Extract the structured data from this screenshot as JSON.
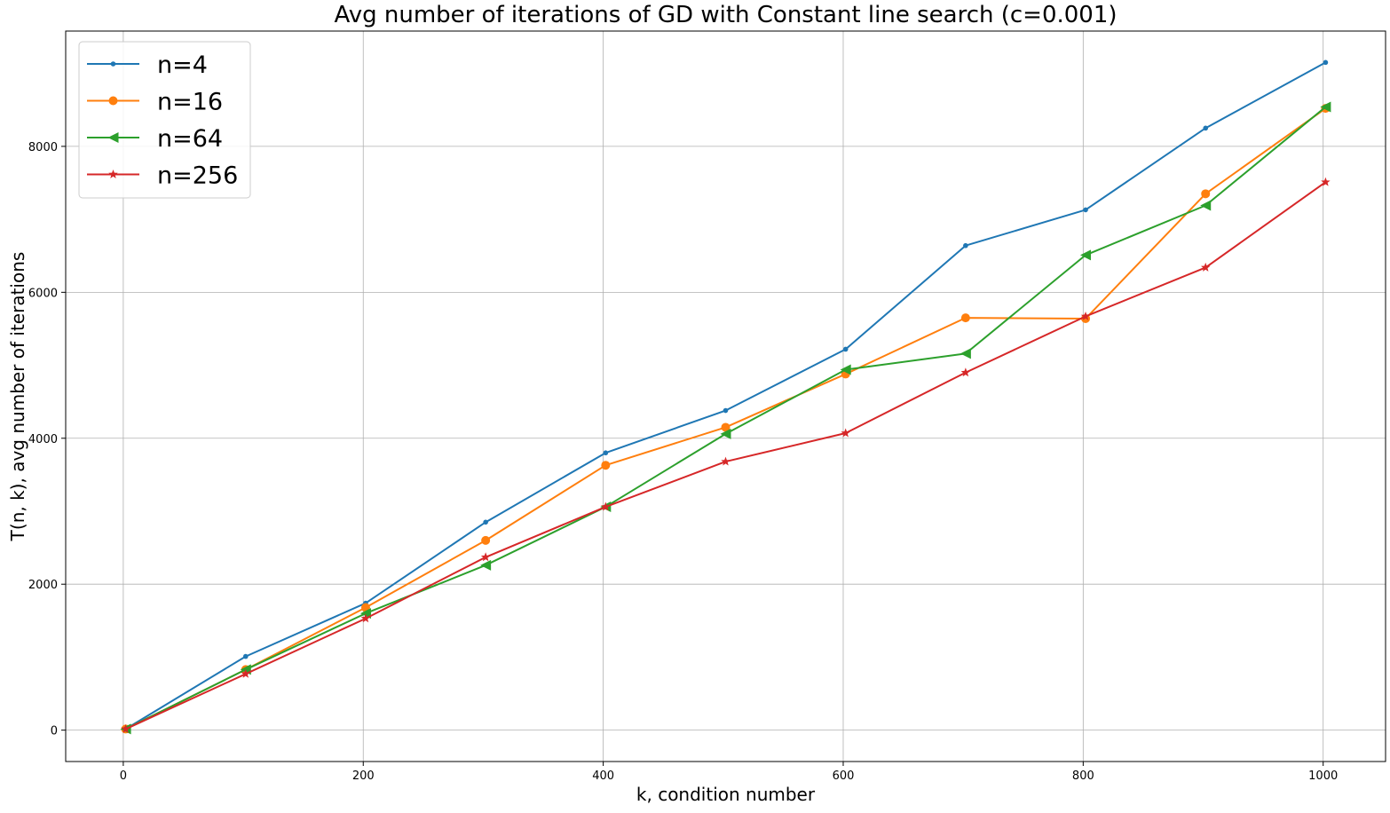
{
  "chart_data": {
    "type": "line",
    "title": "Avg number of iterations of GD with Constant line search (c=0.001)",
    "xlabel": "k, condition number",
    "ylabel": "T(n, k), avg number of iterations",
    "xlim": [
      -48,
      1052
    ],
    "ylim": [
      -430,
      9580
    ],
    "xticks": [
      0,
      200,
      400,
      600,
      800,
      1000
    ],
    "yticks": [
      0,
      2000,
      4000,
      6000,
      8000
    ],
    "xtick_labels": [
      "0",
      "200",
      "400",
      "600",
      "800",
      "1000"
    ],
    "ytick_labels": [
      "0",
      "2000",
      "4000",
      "6000",
      "8000"
    ],
    "grid": true,
    "legend_position": "top-left",
    "x": [
      2,
      102,
      202,
      302,
      402,
      502,
      602,
      702,
      802,
      902,
      1002
    ],
    "series": [
      {
        "name": "n=4",
        "color": "#1f77b4",
        "marker": "point",
        "values": [
          15,
          1010,
          1740,
          2850,
          3800,
          4380,
          5220,
          6640,
          7130,
          8250,
          9150
        ]
      },
      {
        "name": "n=16",
        "color": "#ff7f0e",
        "marker": "circle",
        "values": [
          15,
          830,
          1680,
          2600,
          3630,
          4150,
          4880,
          5650,
          5640,
          7350,
          8520
        ]
      },
      {
        "name": "n=64",
        "color": "#2ca02c",
        "marker": "triangle-left",
        "values": [
          15,
          830,
          1600,
          2260,
          3060,
          4060,
          4940,
          5160,
          6510,
          7190,
          8540
        ]
      },
      {
        "name": "n=256",
        "color": "#d62728",
        "marker": "star",
        "values": [
          15,
          770,
          1530,
          2370,
          3060,
          3680,
          4070,
          4900,
          5670,
          6340,
          7510
        ]
      }
    ]
  }
}
